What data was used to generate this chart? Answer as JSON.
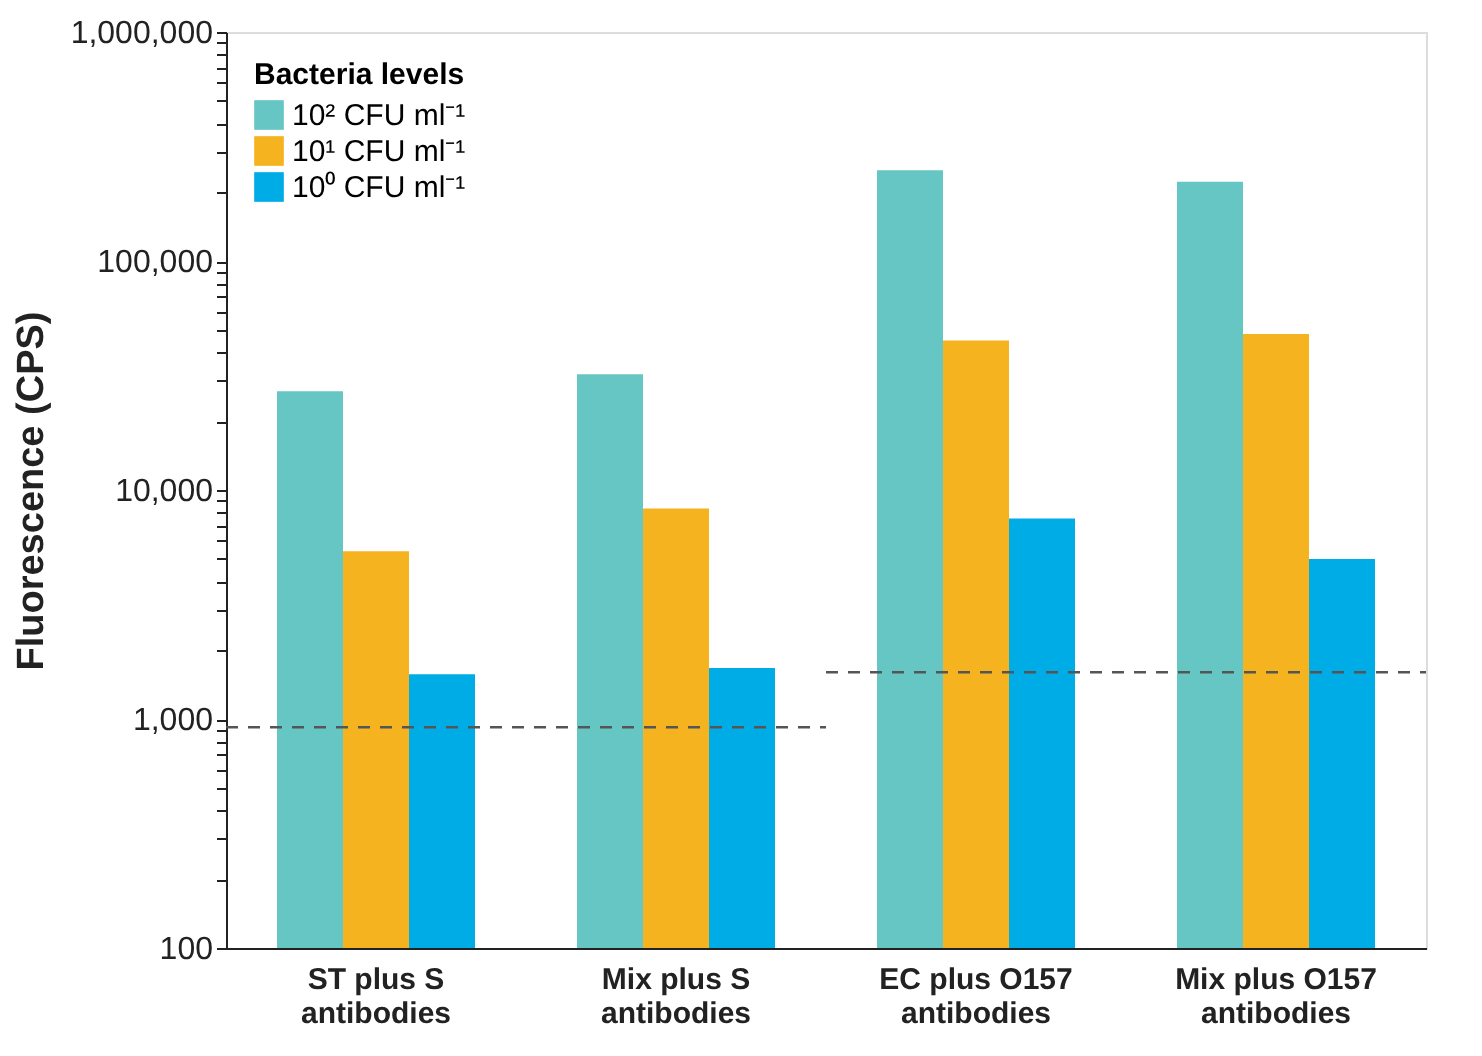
{
  "chart_data": {
    "type": "bar",
    "ylabel": "Fluorescence (CPS)",
    "legend_title": "Bacteria levels",
    "categories": [
      "ST plus S antibodies",
      "Mix plus S antibodies",
      "EC plus O157 antibodies",
      "Mix plus O157 antibodies"
    ],
    "series": [
      {
        "name": "10² CFU ml⁻¹",
        "color": "#66c6c4",
        "values": [
          27000,
          32000,
          249000,
          222000
        ]
      },
      {
        "name": "10¹ CFU ml⁻¹",
        "color": "#f6b320",
        "values": [
          5400,
          8300,
          45000,
          48000
        ]
      },
      {
        "name": "10⁰ CFU ml⁻¹",
        "color": "#00ace6",
        "values": [
          1570,
          1670,
          7500,
          5000
        ]
      }
    ],
    "log": "y",
    "ylim": [
      100,
      1000000
    ],
    "yticks": [
      100,
      {
        "value": 200,
        "label": null
      },
      {
        "value": 300,
        "label": null
      },
      {
        "value": 400,
        "label": null
      },
      {
        "value": 500,
        "label": null
      },
      {
        "value": 600,
        "label": null
      },
      {
        "value": 700,
        "label": null
      },
      {
        "value": 800,
        "label": null
      },
      {
        "value": 900,
        "label": null
      },
      {
        "value": 1000,
        "label": "1,000"
      },
      {
        "value": 2000,
        "label": null
      },
      {
        "value": 3000,
        "label": null
      },
      {
        "value": 4000,
        "label": null
      },
      {
        "value": 5000,
        "label": null
      },
      {
        "value": 6000,
        "label": null
      },
      {
        "value": 7000,
        "label": null
      },
      {
        "value": 8000,
        "label": null
      },
      {
        "value": 9000,
        "label": null
      },
      {
        "value": 10000,
        "label": "10,000"
      },
      {
        "value": 20000,
        "label": null
      },
      {
        "value": 30000,
        "label": null
      },
      {
        "value": 40000,
        "label": null
      },
      {
        "value": 50000,
        "label": null
      },
      {
        "value": 60000,
        "label": null
      },
      {
        "value": 70000,
        "label": null
      },
      {
        "value": 80000,
        "label": null
      },
      {
        "value": 90000,
        "label": null
      },
      {
        "value": 100000,
        "label": "100,000"
      },
      {
        "value": 200000,
        "label": null
      },
      {
        "value": 300000,
        "label": null
      },
      {
        "value": 400000,
        "label": null
      },
      {
        "value": 500000,
        "label": null
      },
      {
        "value": 600000,
        "label": null
      },
      {
        "value": 700000,
        "label": null
      },
      {
        "value": 800000,
        "label": null
      },
      {
        "value": 900000,
        "label": null
      },
      {
        "value": 1000000,
        "label": "1,000,000"
      }
    ],
    "ref_lines": [
      {
        "axis": "y",
        "value": 920,
        "line_style": "dashed",
        "color": "#555555"
      },
      {
        "axis": "y",
        "value": 1600,
        "line_style": "dashed",
        "color": "#555555"
      }
    ],
    "grid": false,
    "legend": "top left"
  }
}
